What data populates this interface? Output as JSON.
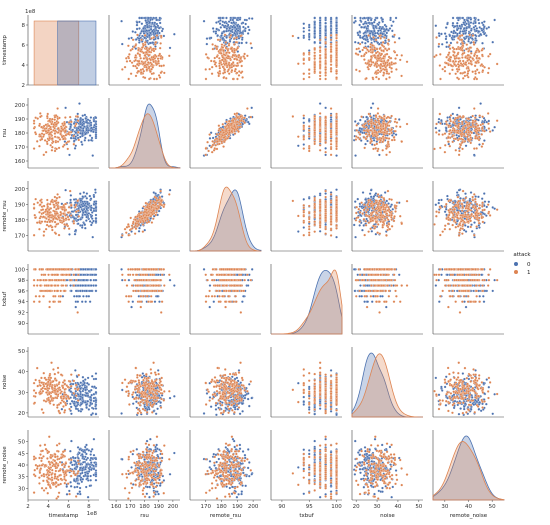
{
  "chart_data": {
    "type": "scatter",
    "subtype": "pairplot",
    "hue": "attack",
    "legend": {
      "title": "attack",
      "placement": "right",
      "entries": [
        "0",
        "1"
      ]
    },
    "colors": {
      "0": "#4c72b0",
      "1": "#dd8452"
    },
    "diagonal": "kde",
    "variables": [
      {
        "name": "timestamp",
        "range": [
          2,
          9
        ],
        "ticks": [
          "2",
          "4",
          "6",
          "8"
        ],
        "offset_text": "1e8",
        "classes": {
          "0": {
            "mean": 7.4,
            "sd": 0.85
          },
          "1": {
            "mean": 4.6,
            "sd": 1.0
          }
        }
      },
      {
        "name": "rsu",
        "range": [
          155,
          205
        ],
        "ticks": [
          "160",
          "170",
          "180",
          "190",
          "200"
        ],
        "classes": {
          "0": {
            "mean": 183,
            "sd": 5.5
          },
          "1": {
            "mean": 182,
            "sd": 6.0
          }
        }
      },
      {
        "name": "remote_rsu",
        "range": [
          160,
          205
        ],
        "ticks": [
          "170",
          "180",
          "190",
          "200"
        ],
        "classes": {
          "0": {
            "mean": 186,
            "sd": 6.5
          },
          "1": {
            "mean": 184,
            "sd": 5.5
          }
        }
      },
      {
        "name": "txbuf",
        "range": [
          88,
          101
        ],
        "ticks": [
          "90",
          "92",
          "94",
          "96",
          "98",
          "100"
        ],
        "x_ticks": [
          "90",
          "95",
          "100"
        ],
        "classes": {
          "0": {
            "mean": 98,
            "sd": 2
          },
          "1": {
            "mean": 98,
            "sd": 2.2
          }
        }
      },
      {
        "name": "noise",
        "range": [
          18,
          52
        ],
        "ticks": [
          "20",
          "30",
          "40",
          "50"
        ],
        "classes": {
          "0": {
            "mean": 28,
            "sd": 4
          },
          "1": {
            "mean": 31,
            "sd": 4.5
          }
        }
      },
      {
        "name": "remote_noise",
        "range": [
          25,
          55
        ],
        "ticks": [
          "30",
          "35",
          "40",
          "45",
          "50"
        ],
        "x_ticks": [
          "30",
          "40",
          "50"
        ],
        "classes": {
          "0": {
            "mean": 39,
            "sd": 5
          },
          "1": {
            "mean": 38,
            "sd": 5.2
          }
        }
      }
    ],
    "correlation": {
      "rsu-remote_rsu": 0.85
    },
    "points_per_class": 200,
    "grid": false
  }
}
